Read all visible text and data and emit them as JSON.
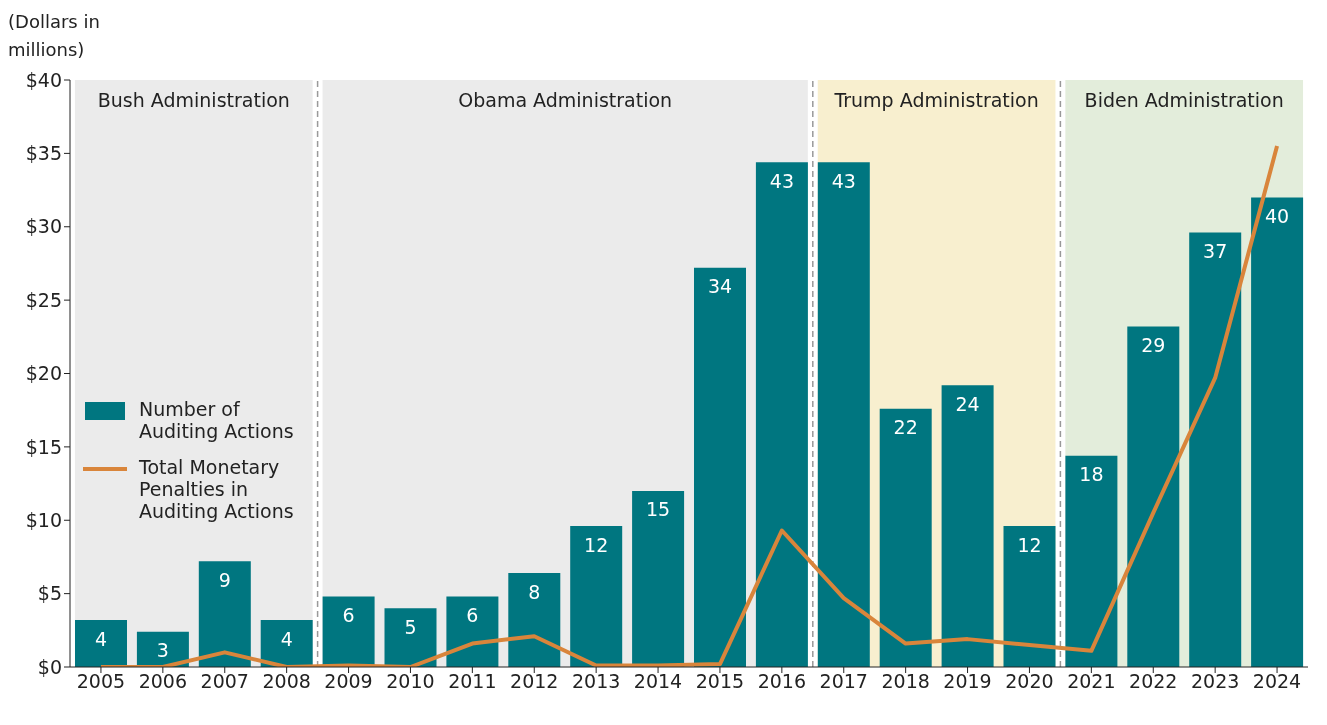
{
  "chart_data": {
    "type": "bar",
    "ylabel": "(Dollars in millions)",
    "categories": [
      "2005",
      "2006",
      "2007",
      "2008",
      "2009",
      "2010",
      "2011",
      "2012",
      "2013",
      "2014",
      "2015",
      "2016",
      "2017",
      "2018",
      "2019",
      "2020",
      "2021",
      "2022",
      "2023",
      "2024"
    ],
    "series": [
      {
        "name": "Number of Auditing Actions",
        "axis": "y2",
        "color": "#007680",
        "values": [
          4,
          3,
          9,
          4,
          6,
          5,
          6,
          8,
          12,
          15,
          34,
          43,
          43,
          22,
          24,
          12,
          18,
          29,
          37,
          40
        ],
        "value_labels": [
          "4",
          "3",
          "9",
          "4",
          "6",
          "5",
          "6",
          "8",
          "12",
          "15",
          "34",
          "43",
          "43",
          "22",
          "24",
          "12",
          "18",
          "29",
          "37",
          "40"
        ]
      },
      {
        "name": "Total Monetary Penalties in Auditing Actions",
        "type": "line",
        "color": "#d9853b",
        "values": [
          0,
          0,
          1.0,
          0,
          0.1,
          0,
          1.6,
          2.1,
          0.1,
          0.1,
          0.2,
          9.3,
          4.7,
          1.6,
          1.9,
          1.5,
          1.1,
          10.5,
          19.7,
          35.5
        ]
      }
    ],
    "ylim": [
      0,
      40
    ],
    "yticks": [
      {
        "value": 0,
        "label": "$0"
      },
      {
        "value": 5,
        "label": "$5"
      },
      {
        "value": 10,
        "label": "$10"
      },
      {
        "value": 15,
        "label": "$15"
      },
      {
        "value": 20,
        "label": "$20"
      },
      {
        "value": 25,
        "label": "$25"
      },
      {
        "value": 30,
        "label": "$30"
      },
      {
        "value": 35,
        "label": "$35"
      },
      {
        "value": 40,
        "label": "$40"
      }
    ],
    "y2lim": [
      0,
      50
    ],
    "bands": [
      {
        "axis": "x",
        "from": "2005",
        "to": "2008",
        "label": "Bush Administration",
        "color": "#ebebeb"
      },
      {
        "axis": "x",
        "from": "2009",
        "to": "2016",
        "label": "Obama Administration",
        "color": "#ebebeb"
      },
      {
        "axis": "x",
        "from": "2017",
        "to": "2020",
        "label": "Trump Administration",
        "color": "#f8efcf"
      },
      {
        "axis": "x",
        "from": "2021",
        "to": "2024",
        "label": "Biden Administration",
        "color": "#e3eddb"
      }
    ],
    "legend": "left",
    "marker": "none",
    "line_style": "solid"
  }
}
